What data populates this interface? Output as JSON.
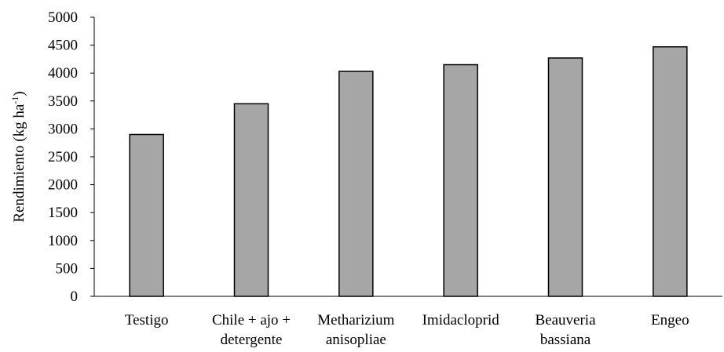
{
  "chart_data": {
    "type": "bar",
    "title": "",
    "xlabel": "",
    "ylabel_main": "Rendimiento (kg ha",
    "ylabel_sup": "-1",
    "ylabel_close": ")",
    "categories": [
      [
        "Testigo"
      ],
      [
        "Chile + ajo +",
        "detergente"
      ],
      [
        "Metharizium",
        "anisopliae"
      ],
      [
        "Imidacloprid"
      ],
      [
        "Beauveria",
        "bassiana"
      ],
      [
        "Engeo"
      ]
    ],
    "values": [
      2900,
      3450,
      4030,
      4150,
      4270,
      4470
    ],
    "ylim": [
      0,
      5000
    ],
    "yticks": [
      0,
      500,
      1000,
      1500,
      2000,
      2500,
      3000,
      3500,
      4000,
      4500,
      5000
    ],
    "grid": false,
    "legend": "none",
    "colors": {
      "bar_fill": "#a6a6a6",
      "bar_stroke": "#000000",
      "axis": "#000000"
    }
  }
}
